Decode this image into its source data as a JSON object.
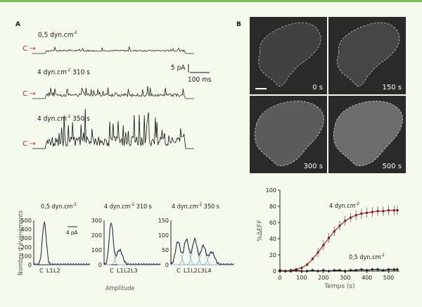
{
  "panel_a_label": "A",
  "panel_b_label": "B",
  "c_marker": "C",
  "traces": [
    {
      "label": "0,5 dyn.cm",
      "sup": "-2",
      "suffix": ""
    },
    {
      "label": "4 dyn.cm",
      "sup": "-2",
      "suffix": " 310 s"
    },
    {
      "label": "4 dyn.cm",
      "sup": "-2",
      "suffix": " 350 s"
    }
  ],
  "scalebar": {
    "current": "5 pA",
    "time": "100 ms"
  },
  "images": {
    "times": [
      "0 s",
      "150 s",
      "300 s",
      "500 s"
    ]
  },
  "histograms": {
    "y_label": "Nombre d'événements",
    "x_label": "Amplitude",
    "scale_pA": "4 pA",
    "panels": [
      {
        "title": "0,5 dyn.cm",
        "sup": "-2",
        "suffix": "",
        "yticks": [
          "500",
          "400",
          "300",
          "200",
          "100",
          "0"
        ],
        "xlabels": [
          "C",
          "L1",
          "L2"
        ]
      },
      {
        "title": "4 dyn.cm",
        "sup": "-2",
        "suffix": " 310 s",
        "yticks": [
          "300",
          "200",
          "100",
          "0"
        ],
        "xlabels": [
          "C",
          "L1",
          "L2",
          "L3"
        ]
      },
      {
        "title": "4 dyn.cm",
        "sup": "-2",
        "suffix": " 350 s",
        "yticks": [
          "150",
          "100",
          "50",
          "0"
        ],
        "xlabels": [
          "C",
          "L1",
          "L2",
          "L3",
          "L4"
        ]
      }
    ]
  },
  "chart_data": {
    "type": "line",
    "xlabel": "Temps (s)",
    "ylabel": "%ΔEFF",
    "xlim": [
      0,
      550
    ],
    "ylim": [
      0,
      100
    ],
    "xticks": [
      0,
      100,
      200,
      300,
      400,
      500
    ],
    "yticks": [
      0,
      20,
      40,
      60,
      80,
      100
    ],
    "series": [
      {
        "name": "4 dyn.cm-2",
        "color": "#c0282d",
        "x": [
          0,
          25,
          50,
          75,
          100,
          125,
          150,
          175,
          200,
          225,
          250,
          275,
          300,
          325,
          350,
          375,
          400,
          425,
          450,
          475,
          500,
          525,
          540
        ],
        "values": [
          0,
          0,
          1,
          2,
          4,
          8,
          15,
          23,
          32,
          41,
          49,
          56,
          62,
          66,
          69,
          71,
          72,
          73,
          74,
          74,
          75,
          75,
          75
        ]
      },
      {
        "name": "0,5 dyn.cm-2",
        "color": "#222222",
        "x": [
          0,
          25,
          50,
          75,
          100,
          125,
          150,
          175,
          200,
          225,
          250,
          275,
          300,
          325,
          350,
          375,
          400,
          425,
          450,
          475,
          500,
          525,
          540
        ],
        "values": [
          1,
          0,
          0,
          1,
          0,
          0,
          1,
          0,
          1,
          0,
          1,
          1,
          0,
          1,
          1,
          2,
          1,
          2,
          2,
          1,
          2,
          2,
          2
        ]
      }
    ],
    "annotations": [
      {
        "text": "4 dyn.cm",
        "sup": "-2"
      },
      {
        "text": "0,5 dyn.cm",
        "sup": "-2"
      }
    ]
  }
}
